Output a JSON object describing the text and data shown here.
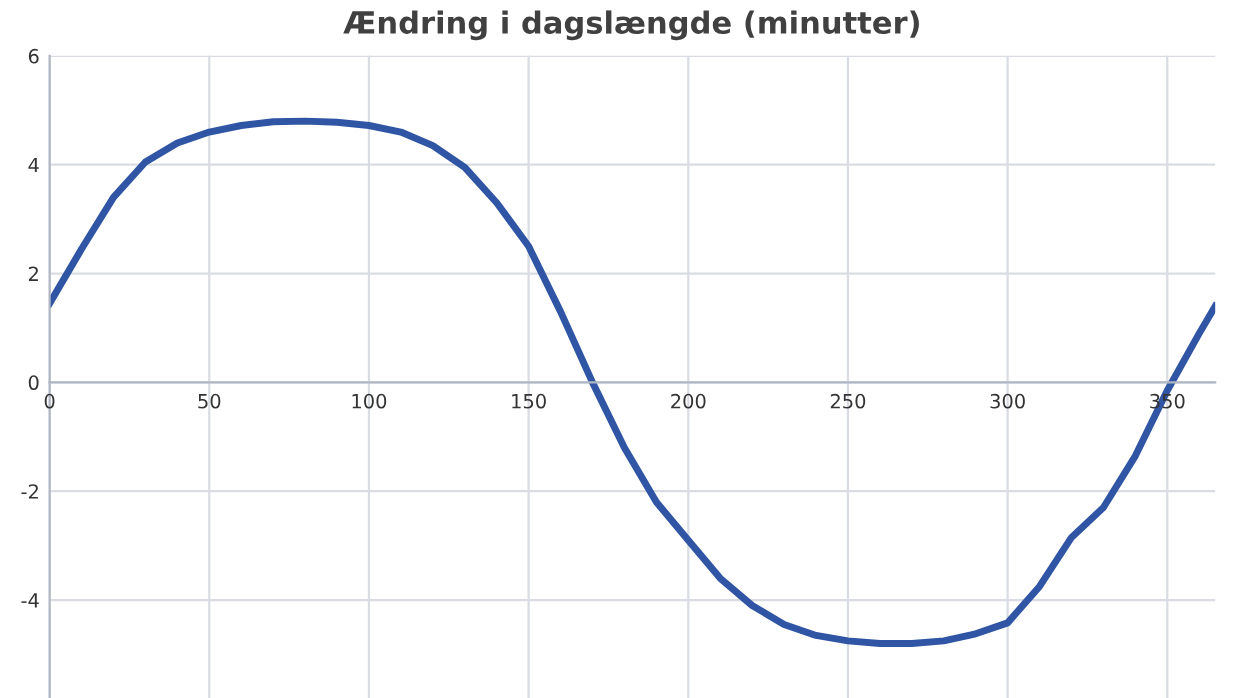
{
  "chart_data": {
    "type": "line",
    "title": "Ændring i dagslængde (minutter)",
    "x": [
      0,
      10,
      20,
      30,
      40,
      50,
      60,
      70,
      80,
      90,
      100,
      110,
      120,
      130,
      140,
      150,
      160,
      170,
      180,
      190,
      200,
      210,
      220,
      230,
      240,
      250,
      260,
      270,
      280,
      290,
      300,
      310,
      320,
      330,
      340,
      350,
      360,
      365
    ],
    "series": [
      {
        "color": "#2f55a4",
        "values": [
          1.45,
          2.45,
          3.4,
          4.05,
          4.4,
          4.6,
          4.72,
          4.79,
          4.8,
          4.78,
          4.72,
          4.6,
          4.35,
          3.95,
          3.3,
          2.5,
          1.3,
          0.0,
          -1.2,
          -2.2,
          -2.9,
          -3.6,
          -4.1,
          -4.45,
          -4.65,
          -4.75,
          -4.8,
          -4.8,
          -4.75,
          -4.62,
          -4.42,
          -3.75,
          -2.85,
          -2.3,
          -1.35,
          -0.15,
          0.9,
          1.4
        ]
      }
    ],
    "xlim": [
      0,
      365
    ],
    "xticks": [
      0,
      50,
      100,
      150,
      200,
      250,
      300,
      350
    ],
    "ylim": [
      -5.8,
      6
    ],
    "yticks": [
      -4,
      -2,
      0,
      2,
      4,
      6
    ],
    "grid": true,
    "marker": "none",
    "line_style": "solid"
  }
}
